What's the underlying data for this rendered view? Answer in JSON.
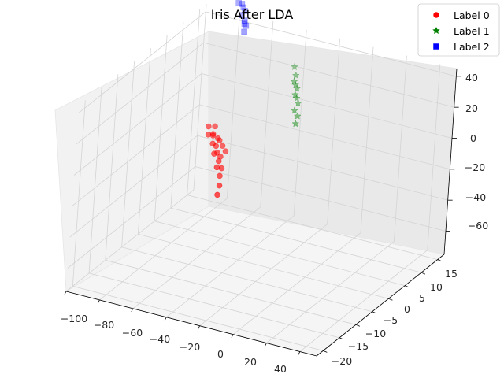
{
  "chart_data": {
    "type": "scatter",
    "title": "Iris After LDA",
    "xlabel": "",
    "ylabel": "",
    "zlabel": "",
    "xlim": [
      -100,
      50
    ],
    "ylim": [
      -22,
      17
    ],
    "zlim": [
      -75,
      45
    ],
    "x_ticks": [
      "−100",
      "−80",
      "−60",
      "−40",
      "−20",
      "0",
      "20",
      "40"
    ],
    "y_ticks": [
      "−20",
      "−15",
      "−10",
      "−5",
      "0",
      "5",
      "10",
      "15"
    ],
    "z_ticks": [
      "−60",
      "−40",
      "−20",
      "0",
      "20",
      "40"
    ],
    "grid": true,
    "legend_position": "top-right",
    "series": [
      {
        "name": "Label 0",
        "color": "#ff0000",
        "marker": "circle",
        "points": [
          [
            -61,
            -1,
            7
          ],
          [
            -59,
            0,
            6
          ],
          [
            -59,
            -2,
            4
          ],
          [
            -58,
            -1,
            3
          ],
          [
            -58,
            -1,
            2
          ],
          [
            -56,
            -2,
            -1
          ],
          [
            -54,
            -1,
            0
          ],
          [
            -53,
            -3,
            -5
          ],
          [
            -54,
            -2,
            -2
          ],
          [
            -55,
            -1,
            1
          ],
          [
            -53,
            -2,
            -6
          ],
          [
            -52,
            -1,
            -3
          ],
          [
            -50,
            -3,
            -9
          ],
          [
            -51,
            -2,
            -8
          ],
          [
            -50,
            -1,
            -6
          ],
          [
            -49,
            -4,
            -11
          ],
          [
            -48,
            -3,
            -13
          ],
          [
            -47,
            -4,
            -16
          ],
          [
            -45,
            -5,
            -20
          ],
          [
            -44,
            -6,
            -24
          ]
        ]
      },
      {
        "name": "Label 1",
        "color": "#008000",
        "marker": "star",
        "points": [
          [
            -31,
            9,
            37
          ],
          [
            -28,
            8,
            34
          ],
          [
            -27,
            7,
            32
          ],
          [
            -26,
            7,
            30
          ],
          [
            -25,
            7,
            28
          ],
          [
            -24,
            6,
            26
          ],
          [
            -23,
            6,
            24
          ],
          [
            -22,
            6,
            21
          ],
          [
            -22,
            5,
            18
          ],
          [
            -20,
            5,
            15
          ],
          [
            -19,
            4,
            12
          ]
        ]
      },
      {
        "name": "Label 2",
        "color": "#0000ff",
        "marker": "square",
        "points": [
          [
            -74,
            13,
            89
          ],
          [
            -73,
            13,
            77
          ],
          [
            -69,
            13,
            75
          ],
          [
            -72,
            12,
            71
          ],
          [
            -71,
            12,
            68
          ],
          [
            -69,
            12,
            68
          ],
          [
            -70,
            11,
            64
          ],
          [
            -68,
            11,
            64
          ],
          [
            -67,
            11,
            62
          ],
          [
            -66,
            11,
            60
          ],
          [
            -66,
            10,
            59
          ],
          [
            -64,
            10,
            56
          ],
          [
            -64,
            10,
            54
          ],
          [
            -63,
            10,
            53
          ],
          [
            -62,
            9,
            51
          ]
        ]
      }
    ]
  }
}
